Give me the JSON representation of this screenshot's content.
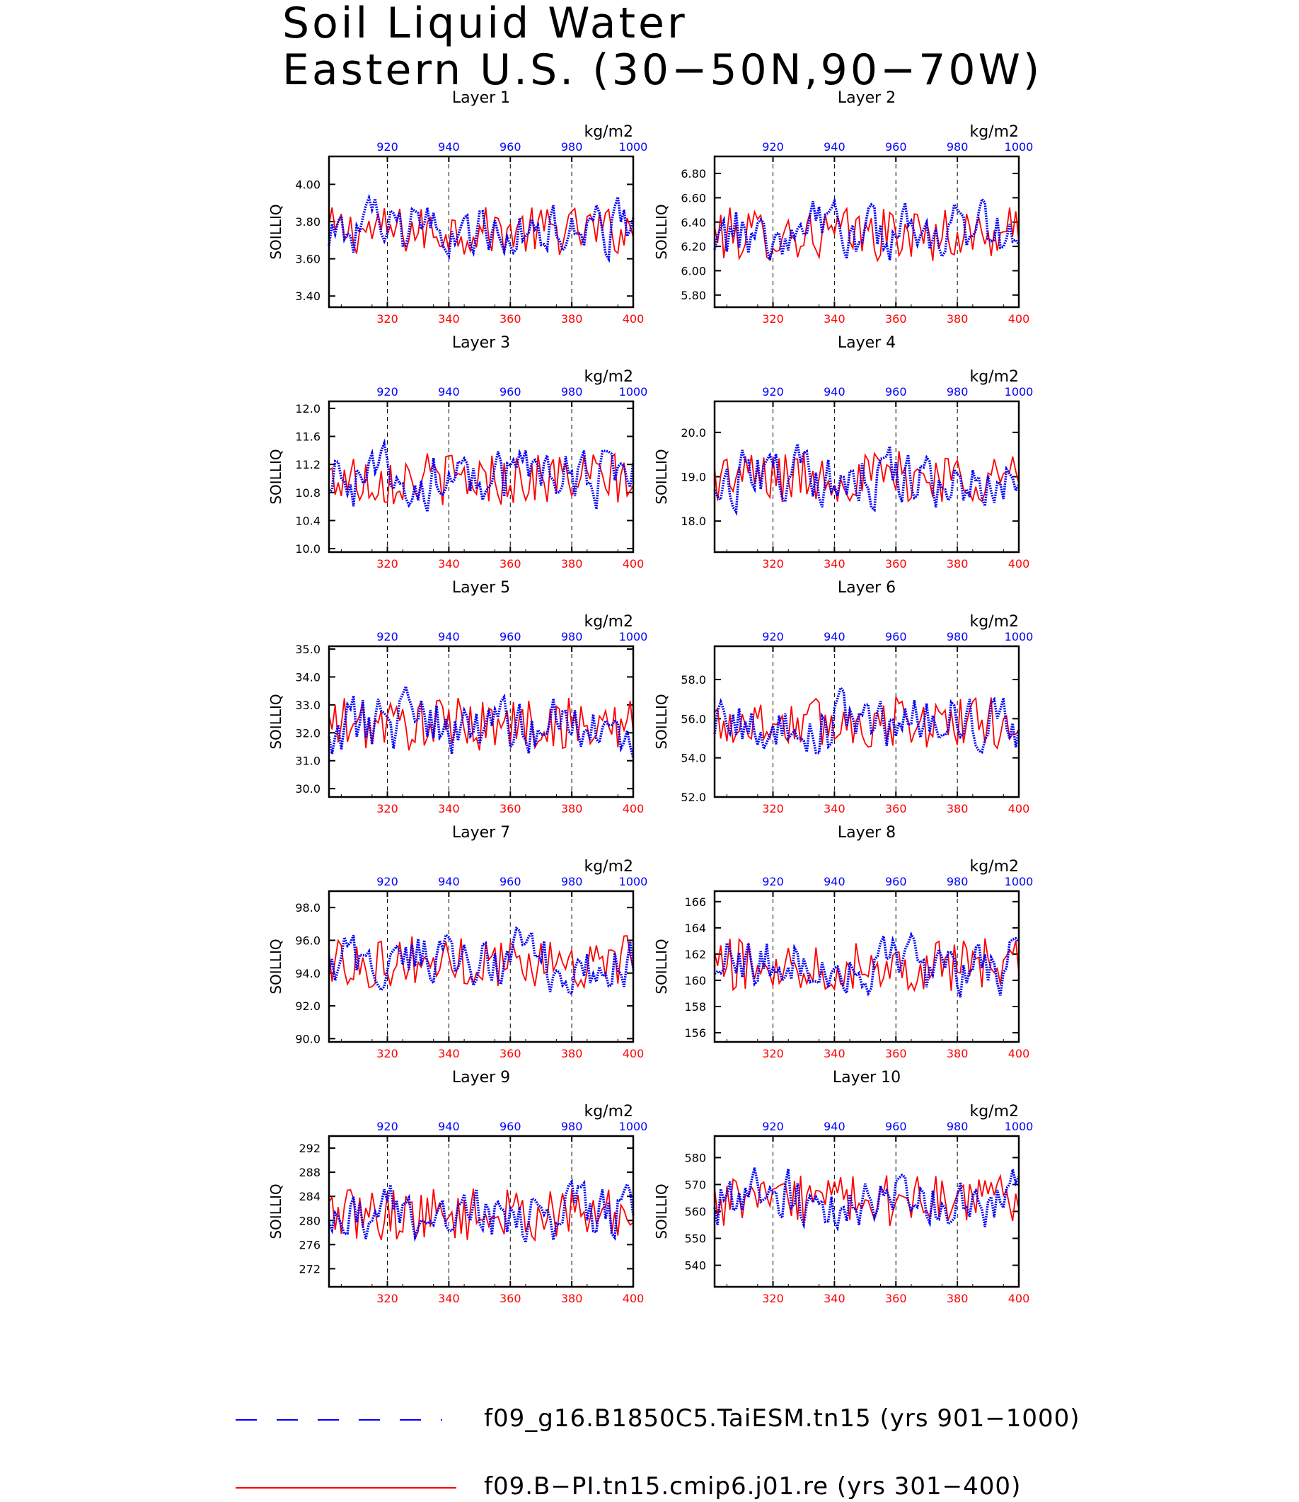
{
  "title": {
    "line1": "Soil Liquid Water",
    "line2": "Eastern U.S. (30−50N,90−70W)"
  },
  "colors": {
    "case1": "#0000ff",
    "case2": "#ff0000",
    "axis": "#000000"
  },
  "chart_data": {
    "type": "line",
    "ylabel": "SOILLIQ",
    "units": "kg/m2",
    "grid": "dashed vertical lines at 320, 340, 360, 380",
    "x_bottom": {
      "range": [
        301,
        400
      ],
      "ticks": [
        "320",
        "340",
        "360",
        "380",
        "400"
      ]
    },
    "x_top": {
      "range": [
        901,
        1000
      ],
      "ticks": [
        "920",
        "940",
        "960",
        "980",
        "1000"
      ]
    },
    "legend": [
      {
        "text": "f09_g16.B1850C5.TaiESM.tn15 (yrs 901−1000)",
        "color": "#0000ff",
        "style": "dashed"
      },
      {
        "text": "f09.B−PI.tn15.cmip6.j01.re (yrs 301−400)",
        "color": "#ff0000",
        "style": "solid"
      }
    ],
    "panels": [
      {
        "title": "Layer 1",
        "ylim": [
          3.34,
          4.15
        ],
        "yticks": [
          "3.40",
          "3.60",
          "3.80",
          "4.00"
        ],
        "ytick_values": [
          3.4,
          3.6,
          3.8,
          4.0
        ],
        "mean": 3.75,
        "amp": 0.13
      },
      {
        "title": "Layer 2",
        "ylim": [
          5.7,
          6.94
        ],
        "yticks": [
          "5.80",
          "6.00",
          "6.20",
          "6.40",
          "6.60",
          "6.80"
        ],
        "ytick_values": [
          5.8,
          6.0,
          6.2,
          6.4,
          6.6,
          6.8
        ],
        "mean": 6.3,
        "amp": 0.22
      },
      {
        "title": "Layer 3",
        "ylim": [
          9.95,
          12.1
        ],
        "yticks": [
          "10.0",
          "10.4",
          "10.8",
          "11.2",
          "11.6",
          "12.0"
        ],
        "ytick_values": [
          10.0,
          10.4,
          10.8,
          11.2,
          11.6,
          12.0
        ],
        "mean": 11.0,
        "amp": 0.38
      },
      {
        "title": "Layer 4",
        "ylim": [
          17.3,
          20.7
        ],
        "yticks": [
          "18.0",
          "19.0",
          "20.0"
        ],
        "ytick_values": [
          18.0,
          19.0,
          20.0
        ],
        "mean": 19.0,
        "amp": 0.6
      },
      {
        "title": "Layer 5",
        "ylim": [
          29.7,
          35.1
        ],
        "yticks": [
          "30.0",
          "31.0",
          "32.0",
          "33.0",
          "34.0",
          "35.0"
        ],
        "ytick_values": [
          30,
          31,
          32,
          33,
          34,
          35
        ],
        "mean": 32.3,
        "amp": 0.95
      },
      {
        "title": "Layer 6",
        "ylim": [
          52.0,
          59.7
        ],
        "yticks": [
          "52.0",
          "54.0",
          "56.0",
          "58.0"
        ],
        "ytick_values": [
          52,
          54,
          56,
          58
        ],
        "mean": 55.8,
        "amp": 1.35
      },
      {
        "title": "Layer 7",
        "ylim": [
          89.8,
          99.0
        ],
        "yticks": [
          "90.0",
          "92.0",
          "94.0",
          "96.0",
          "98.0"
        ],
        "ytick_values": [
          90,
          92,
          94,
          96,
          98
        ],
        "mean": 94.7,
        "amp": 1.6
      },
      {
        "title": "Layer 8",
        "ylim": [
          155.3,
          166.8
        ],
        "yticks": [
          "156",
          "158",
          "160",
          "162",
          "164",
          "166"
        ],
        "ytick_values": [
          156,
          158,
          160,
          162,
          164,
          166
        ],
        "mean": 161.2,
        "amp": 2.0
      },
      {
        "title": "Layer 9",
        "ylim": [
          269.0,
          294.0
        ],
        "yticks": [
          "272",
          "276",
          "280",
          "284",
          "288",
          "292"
        ],
        "ytick_values": [
          272,
          276,
          280,
          284,
          288,
          292
        ],
        "mean": 281.0,
        "amp": 4.3
      },
      {
        "title": "Layer 10",
        "ylim": [
          532.0,
          588.0
        ],
        "yticks": [
          "540",
          "550",
          "560",
          "570",
          "580"
        ],
        "ytick_values": [
          540,
          550,
          560,
          570,
          580
        ],
        "mean": 564.0,
        "amp": 9.5
      }
    ]
  }
}
